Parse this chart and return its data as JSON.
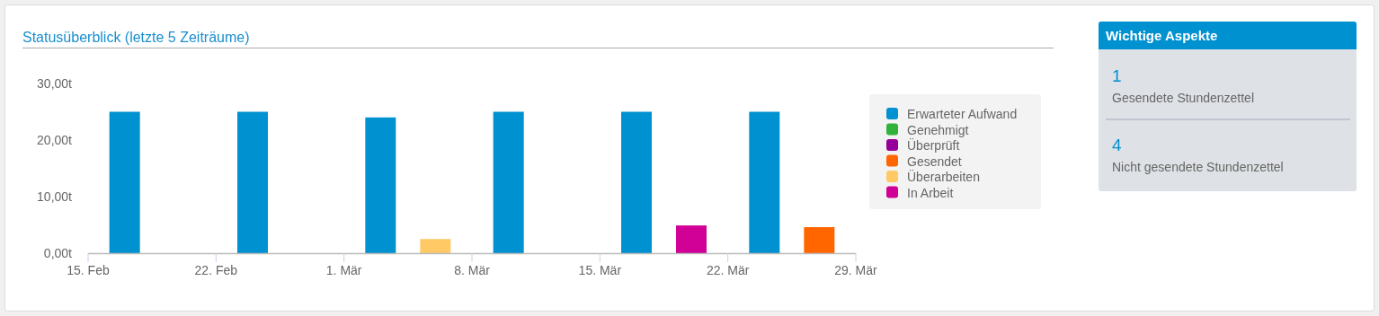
{
  "chart_data": [
    {
      "type": "bar",
      "title": "Statusüberblick (letzte 5 Zeiträume)",
      "xlim": [
        "--02-15",
        "--03-29"
      ],
      "xticks": [
        {
          "value": "--02-15",
          "label": "15. Feb"
        },
        {
          "value": "--02-22",
          "label": "22. Feb"
        },
        {
          "value": "--03-01",
          "label": "1. Mär"
        },
        {
          "value": "--03-08",
          "label": "8. Mär"
        },
        {
          "value": "--03-15",
          "label": "15. Mär"
        },
        {
          "value": "--03-22",
          "label": "22. Mär"
        },
        {
          "value": "--03-29",
          "label": "29. Mär"
        }
      ],
      "ylim": [
        0,
        30
      ],
      "yticks": [
        {
          "value": 0,
          "label": "0,00t"
        },
        {
          "value": 10,
          "label": "10,00t"
        },
        {
          "value": 20,
          "label": "20,00t"
        },
        {
          "value": 30,
          "label": "30,00t"
        }
      ],
      "legend": "right",
      "series": [
        {
          "name": "Erwarteter Aufwand",
          "color": "#0091d0",
          "x": [
            "--02-17",
            "--02-24",
            "--03-03",
            "--03-10",
            "--03-17",
            "--03-24"
          ],
          "values": [
            25,
            25,
            24,
            25,
            25,
            25
          ]
        },
        {
          "name": "Genehmigt",
          "color": "#31b23a"
        },
        {
          "name": "Überprüft",
          "color": "#96009a"
        },
        {
          "name": "Gesendet",
          "color": "#ff6600",
          "x": [
            "--03-27"
          ],
          "values": [
            4.6
          ]
        },
        {
          "name": "Überarbeiten",
          "color": "#ffc966",
          "x": [
            "--03-06"
          ],
          "values": [
            2.5
          ]
        },
        {
          "name": "In Arbeit",
          "color": "#d10096",
          "x": [
            "--03-20"
          ],
          "values": [
            4.9
          ]
        }
      ]
    },
    {
      "type": "other",
      "title": "Wichtige Aspekte",
      "annotations": [
        "1",
        "Gesendete Stundenzettel",
        "4",
        "Nicht gesendete Stundenzettel"
      ]
    }
  ]
}
